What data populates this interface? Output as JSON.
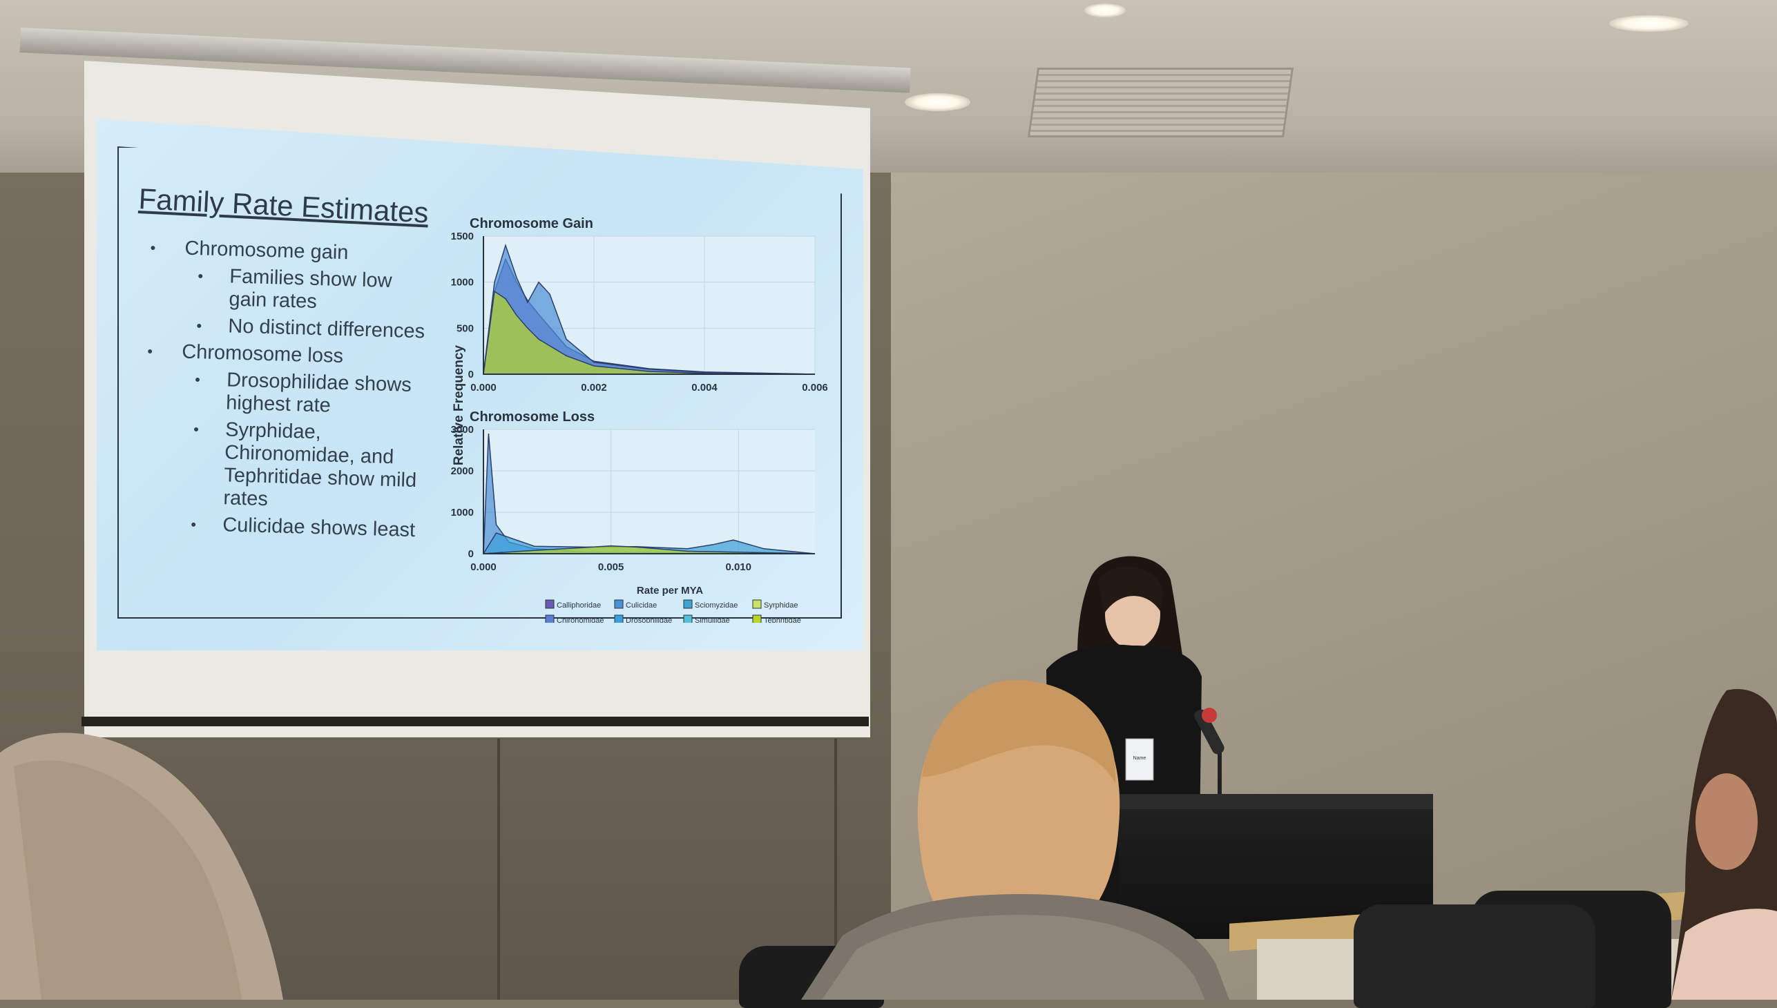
{
  "slide": {
    "title": "Family Rate Estimates",
    "bullets": [
      {
        "level": 1,
        "text": "Chromosome gain"
      },
      {
        "level": 2,
        "text": "Families show low gain rates"
      },
      {
        "level": 2,
        "text": "No distinct differences"
      },
      {
        "level": 1,
        "text": "Chromosome loss"
      },
      {
        "level": 2,
        "text": "Drosophilidae shows highest rate"
      },
      {
        "level": 2,
        "text": "Syrphidae, Chironomidae, and Tephritidae show mild rates"
      },
      {
        "level": 2,
        "text": "Culicidae shows least"
      }
    ]
  },
  "chart_data": {
    "type": "area",
    "ylabel": "Relative Frequency",
    "xlabel": "Rate per MYA",
    "legend": {
      "placement": "bottom",
      "entries": [
        "Calliphoridae",
        "Culicidae",
        "Sciomyzidae",
        "Syrphidae",
        "Chironomidae",
        "Drosophilidae",
        "Simuliidae",
        "Tephritidae"
      ],
      "colors": [
        "#6b5bb5",
        "#4b8fd6",
        "#3fa3d0",
        "#c9e26a",
        "#5a7fd0",
        "#3b9fd9",
        "#55c0d8",
        "#b8d628"
      ]
    },
    "panels": [
      {
        "title": "Chromosome Gain",
        "xlim": [
          0,
          0.006
        ],
        "ylim": [
          0,
          1500
        ],
        "xticks": [
          "0.000",
          "0.002",
          "0.004",
          "0.006"
        ],
        "yticks": [
          "0",
          "500",
          "1000",
          "1500"
        ],
        "series": [
          {
            "name": "Calliphoridae",
            "x": [
              0,
              0.0002,
              0.0004,
              0.0006,
              0.0008,
              0.001,
              0.0015,
              0.002,
              0.003,
              0.004,
              0.006
            ],
            "y": [
              0,
              900,
              1250,
              1000,
              800,
              650,
              300,
              140,
              60,
              25,
              0
            ]
          },
          {
            "name": "Culicidae",
            "x": [
              0,
              0.0002,
              0.0004,
              0.0006,
              0.0008,
              0.001,
              0.0012,
              0.0015,
              0.002,
              0.003,
              0.004,
              0.006
            ],
            "y": [
              0,
              1000,
              1400,
              1050,
              780,
              1000,
              870,
              380,
              130,
              55,
              20,
              0
            ]
          },
          {
            "name": "Tephritidae",
            "x": [
              0,
              0.0002,
              0.0004,
              0.0006,
              0.0008,
              0.001,
              0.0015,
              0.002,
              0.003,
              0.004,
              0.006
            ],
            "y": [
              0,
              900,
              820,
              640,
              500,
              380,
              200,
              90,
              30,
              10,
              0
            ]
          }
        ]
      },
      {
        "title": "Chromosome Loss",
        "xlim": [
          0,
          0.013
        ],
        "ylim": [
          0,
          3000
        ],
        "xticks": [
          "0.000",
          "0.005",
          "0.010"
        ],
        "yticks": [
          "0",
          "1000",
          "2000",
          "3000"
        ],
        "series": [
          {
            "name": "Culicidae",
            "x": [
              0,
              0.0002,
              0.0005,
              0.001,
              0.002,
              0.004,
              0.013
            ],
            "y": [
              0,
              2900,
              700,
              280,
              120,
              40,
              0
            ]
          },
          {
            "name": "Drosophilidae",
            "x": [
              0,
              0.0005,
              0.002,
              0.004,
              0.006,
              0.008,
              0.009,
              0.0098,
              0.011,
              0.013
            ],
            "y": [
              0,
              500,
              180,
              160,
              170,
              120,
              220,
              330,
              120,
              0
            ]
          },
          {
            "name": "Tephritidae",
            "x": [
              0,
              0.002,
              0.004,
              0.005,
              0.006,
              0.008,
              0.013
            ],
            "y": [
              0,
              80,
              150,
              190,
              160,
              60,
              0
            ]
          }
        ]
      }
    ]
  },
  "badge": {
    "text": "Name"
  }
}
